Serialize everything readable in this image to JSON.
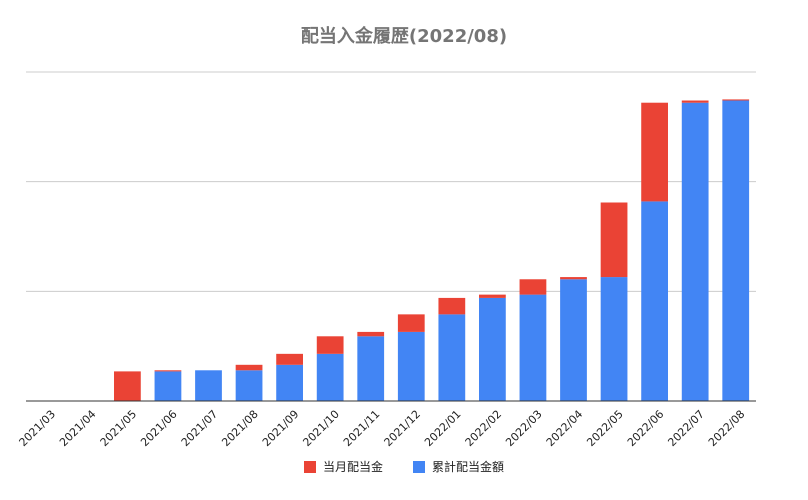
{
  "chart_data": {
    "type": "bar",
    "stacked": true,
    "title": "配当入金履歴(2022/08)",
    "xlabel": "",
    "ylabel": "",
    "grid": true,
    "legend_position": "bottom",
    "ylim": [
      0,
      300
    ],
    "categories": [
      "2021/03",
      "2021/04",
      "2021/05",
      "2021/06",
      "2021/07",
      "2021/08",
      "2021/09",
      "2021/10",
      "2021/11",
      "2021/12",
      "2022/01",
      "2022/02",
      "2022/03",
      "2022/04",
      "2022/05",
      "2022/06",
      "2022/07",
      "2022/08"
    ],
    "series": [
      {
        "name": "累計配当金額",
        "color": "#4285F4",
        "values": [
          0,
          0,
          0,
          27,
          28,
          28,
          33,
          43,
          59,
          63,
          79,
          94,
          97,
          111,
          113,
          182,
          272,
          274
        ]
      },
      {
        "name": "当月配当金",
        "color": "#EA4335",
        "values": [
          0,
          0,
          27,
          1,
          0,
          5,
          10,
          16,
          4,
          16,
          15,
          3,
          14,
          2,
          68,
          90,
          2,
          1
        ]
      }
    ]
  }
}
